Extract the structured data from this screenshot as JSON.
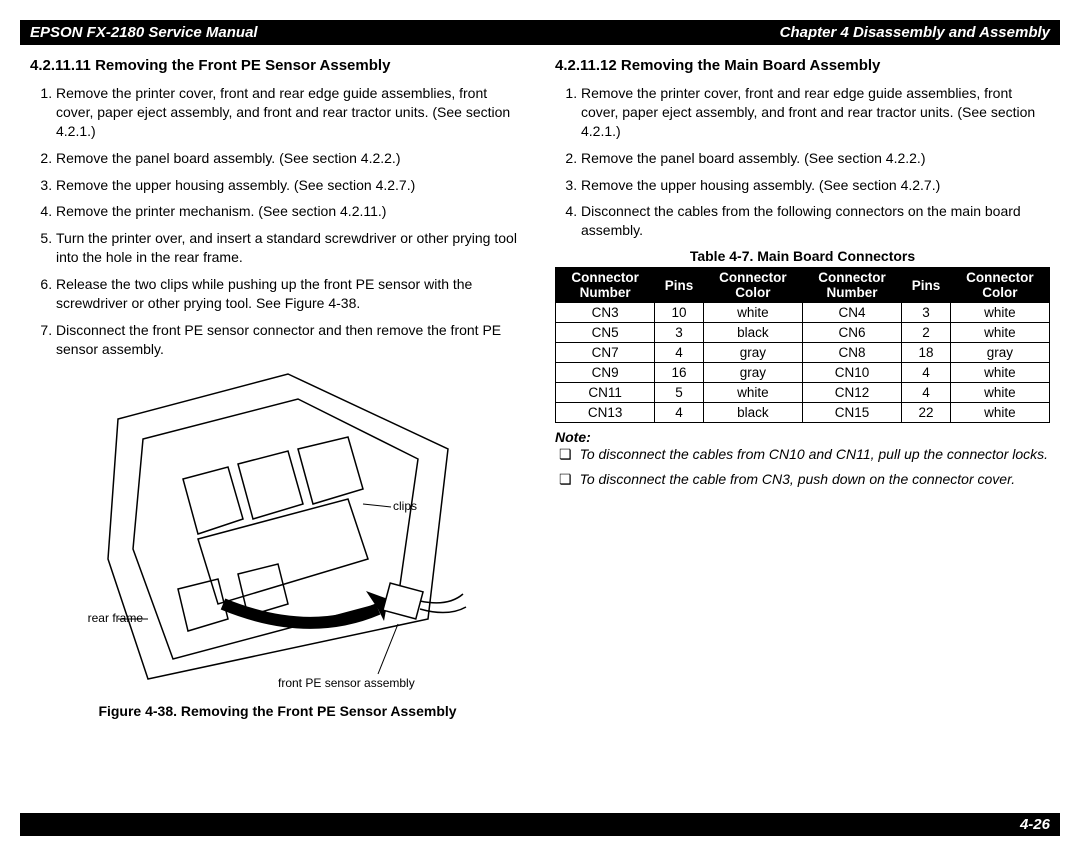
{
  "header": {
    "left": "EPSON FX-2180 Service Manual",
    "right": "Chapter 4  Disassembly and Assembly"
  },
  "left_col": {
    "title": "4.2.11.11 Removing the Front PE Sensor Assembly",
    "steps": [
      "Remove the printer cover, front and rear edge guide assemblies, front cover, paper eject assembly, and front and rear tractor units. (See section 4.2.1.)",
      "Remove the panel board assembly. (See section 4.2.2.)",
      "Remove the upper housing assembly. (See section 4.2.7.)",
      "Remove the printer mechanism. (See section 4.2.11.)",
      "Turn the printer over, and insert a standard screwdriver or other prying tool into the hole in the rear frame.",
      "Release the two clips while pushing up the front PE sensor with the screwdriver or other prying tool. See Figure 4-38.",
      "Disconnect the front PE sensor connector and then remove the front PE sensor assembly."
    ],
    "diagram": {
      "labels": {
        "clips": "clips",
        "rear_frame": "rear frame",
        "front_pe": "front PE sensor assembly"
      }
    },
    "figure_caption": "Figure 4-38. Removing the Front PE Sensor Assembly"
  },
  "right_col": {
    "title": "4.2.11.12 Removing the Main Board Assembly",
    "steps": [
      "Remove the printer cover, front and rear edge guide assemblies, front cover, paper eject assembly, and front and rear tractor units. (See section 4.2.1.)",
      "Remove the panel board assembly. (See section 4.2.2.)",
      "Remove the upper housing assembly. (See section 4.2.7.)",
      "Disconnect the cables from the following connectors on the main board assembly."
    ],
    "table": {
      "caption": "Table 4-7. Main Board Connectors",
      "headers": [
        "Connector Number",
        "Pins",
        "Connector Color",
        "Connector Number",
        "Pins",
        "Connector Color"
      ],
      "rows": [
        [
          "CN3",
          "10",
          "white",
          "CN4",
          "3",
          "white"
        ],
        [
          "CN5",
          "3",
          "black",
          "CN6",
          "2",
          "white"
        ],
        [
          "CN7",
          "4",
          "gray",
          "CN8",
          "18",
          "gray"
        ],
        [
          "CN9",
          "16",
          "gray",
          "CN10",
          "4",
          "white"
        ],
        [
          "CN11",
          "5",
          "white",
          "CN12",
          "4",
          "white"
        ],
        [
          "CN13",
          "4",
          "black",
          "CN15",
          "22",
          "white"
        ]
      ]
    },
    "note_label": "Note:",
    "notes": [
      "To disconnect the cables from CN10 and CN11, pull up the connector locks.",
      "To disconnect the cable from CN3, push down on the connector cover."
    ]
  },
  "footer": "4-26",
  "colors": {
    "bar_bg": "#000000",
    "bar_fg": "#ffffff",
    "border": "#000000",
    "page_bg": "#ffffff"
  }
}
